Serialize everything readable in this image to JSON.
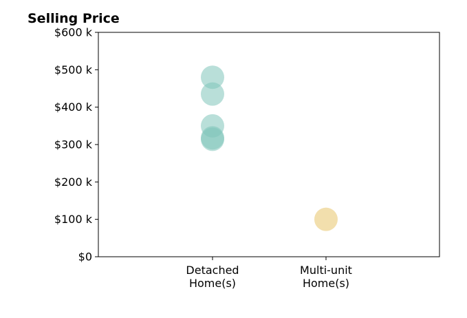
{
  "chart_data": {
    "type": "scatter",
    "title": "Selling Price",
    "xlabel": "",
    "ylabel": "",
    "categories": [
      "Detached\nHome(s)",
      "Multi-unit\nHome(s)"
    ],
    "ylim": [
      0,
      600000
    ],
    "yticks": [
      0,
      100000,
      200000,
      300000,
      400000,
      500000,
      600000
    ],
    "ytick_labels": [
      "$0",
      "$100 k",
      "$200 k",
      "$300 k",
      "$400 k",
      "$500 k",
      "$600 k"
    ],
    "grid": false,
    "series": [
      {
        "color": "#7fc4ba",
        "points": [
          {
            "category": "Detached\nHome(s)",
            "value": 480000
          },
          {
            "category": "Detached\nHome(s)",
            "value": 435000
          },
          {
            "category": "Detached\nHome(s)",
            "value": 350000
          },
          {
            "category": "Detached\nHome(s)",
            "value": 318000
          },
          {
            "category": "Detached\nHome(s)",
            "value": 314000
          }
        ]
      },
      {
        "color": "#e8c46a",
        "points": [
          {
            "category": "Multi-unit\nHome(s)",
            "value": 100000
          }
        ]
      }
    ]
  }
}
